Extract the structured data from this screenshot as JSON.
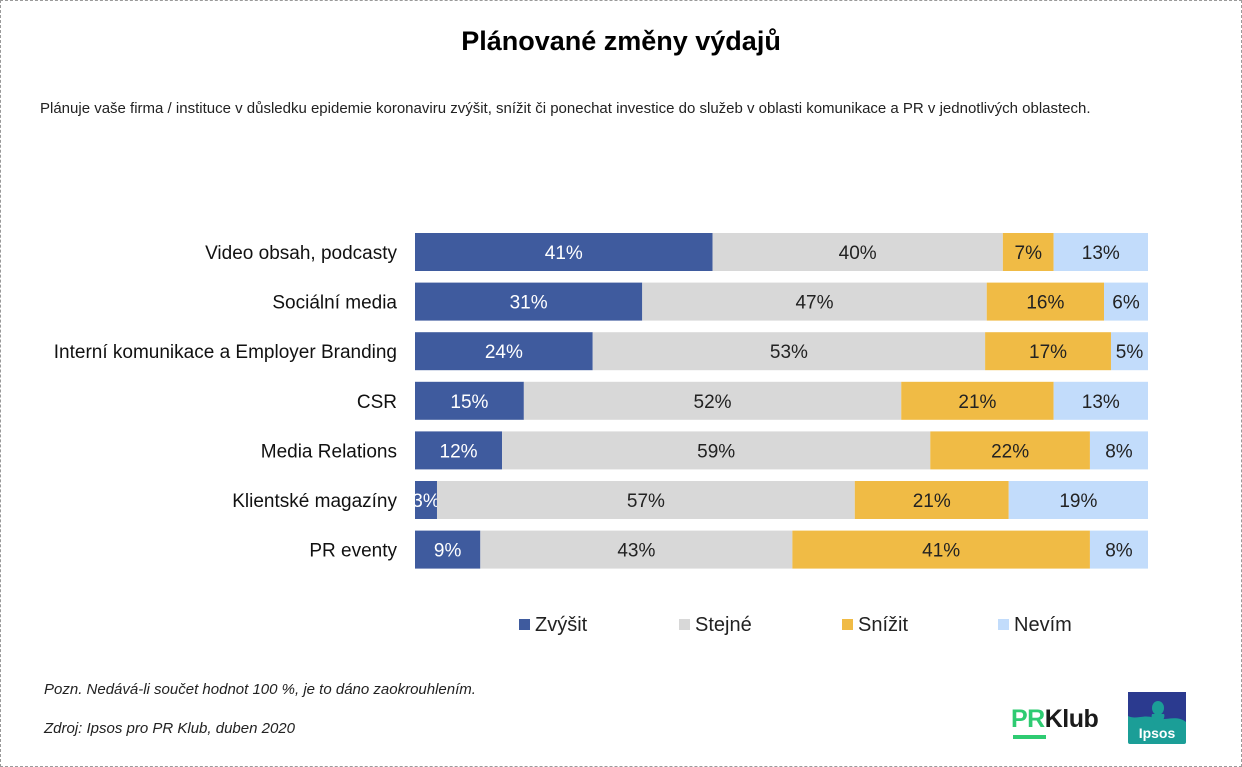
{
  "title": "Plánované změny výdajů",
  "subtitle": "Plánuje vaše firma / instituce v důsledku epidemie koronaviru zvýšit, snížit či ponechat investice do služeb v oblasti komunikace a PR v jednotlivých oblastech.",
  "colors": {
    "zvysit": "#3f5b9e",
    "stejne": "#d8d8d8",
    "snizit": "#f0bb45",
    "nevim": "#c2dcfb"
  },
  "chart_data": {
    "type": "bar",
    "orientation": "horizontal",
    "stacked": true,
    "percent_stacked": true,
    "categories": [
      "Video obsah, podcasty",
      "Sociální media",
      "Interní komunikace a Employer Branding",
      "CSR",
      "Media Relations",
      "Klientské magazíny",
      "PR eventy"
    ],
    "series": [
      {
        "name": "Zvýšit",
        "color": "#3f5b9e",
        "values": [
          41,
          31,
          24,
          15,
          12,
          3,
          9
        ]
      },
      {
        "name": "Stejné",
        "color": "#d8d8d8",
        "values": [
          40,
          47,
          53,
          52,
          59,
          57,
          43
        ]
      },
      {
        "name": "Snížit",
        "color": "#f0bb45",
        "values": [
          7,
          16,
          17,
          21,
          22,
          21,
          41
        ]
      },
      {
        "name": "Nevím",
        "color": "#c2dcfb",
        "values": [
          13,
          6,
          5,
          13,
          8,
          19,
          8
        ]
      }
    ],
    "value_suffix": "%",
    "legend_position": "bottom",
    "grid": false
  },
  "legend": [
    "Zvýšit",
    "Stejné",
    "Snížit",
    "Nevím"
  ],
  "notes": {
    "note": "Pozn. Nedává-li součet hodnot 100 %, je to dáno zaokrouhlením.",
    "source": "Zdroj: Ipsos pro PR Klub, duben 2020"
  },
  "logos": {
    "prklub_pr": "PR",
    "prklub_klub": "Klub",
    "ipsos": "Ipsos"
  }
}
